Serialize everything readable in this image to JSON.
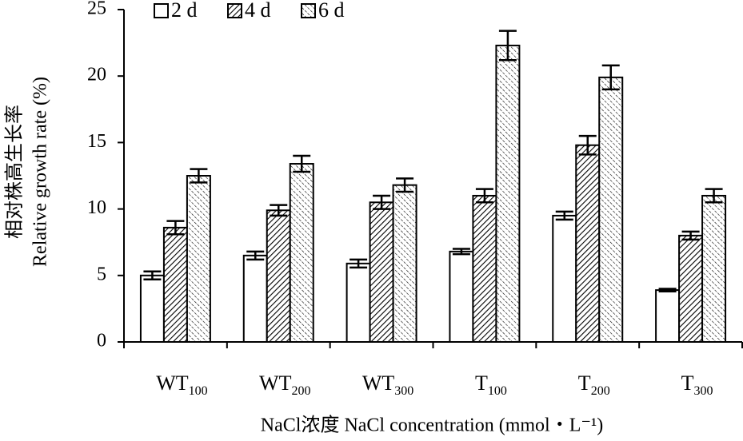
{
  "chart_data": {
    "type": "bar",
    "y_label": [
      "相对株高生长率",
      "Relative growth rate (%)"
    ],
    "x_label": "NaCl浓度 NaCl concentration (mmol・L⁻¹)",
    "categories": [
      "WT100",
      "WT200",
      "WT300",
      "T100",
      "T200",
      "T300"
    ],
    "series": [
      {
        "name": "2 d",
        "color": "#ffffff",
        "pattern": "none",
        "values": [
          5.0,
          6.5,
          5.9,
          6.8,
          9.5,
          3.9
        ],
        "errors": [
          0.3,
          0.3,
          0.3,
          0.2,
          0.3,
          0.1
        ]
      },
      {
        "name": "4 d",
        "color": "#ffffff",
        "pattern": "hatch",
        "values": [
          8.6,
          9.9,
          10.5,
          11.0,
          14.8,
          8.0
        ],
        "errors": [
          0.5,
          0.4,
          0.5,
          0.5,
          0.7,
          0.3
        ]
      },
      {
        "name": "6 d",
        "color": "#ffffff",
        "pattern": "dots",
        "values": [
          12.5,
          13.4,
          11.8,
          22.3,
          19.9,
          11.0
        ],
        "errors": [
          0.5,
          0.6,
          0.5,
          1.1,
          0.9,
          0.5
        ]
      }
    ],
    "ylim": [
      0,
      25
    ],
    "yticks": [
      0,
      5,
      10,
      15,
      20,
      25
    ],
    "grid": false,
    "legend": "top"
  }
}
